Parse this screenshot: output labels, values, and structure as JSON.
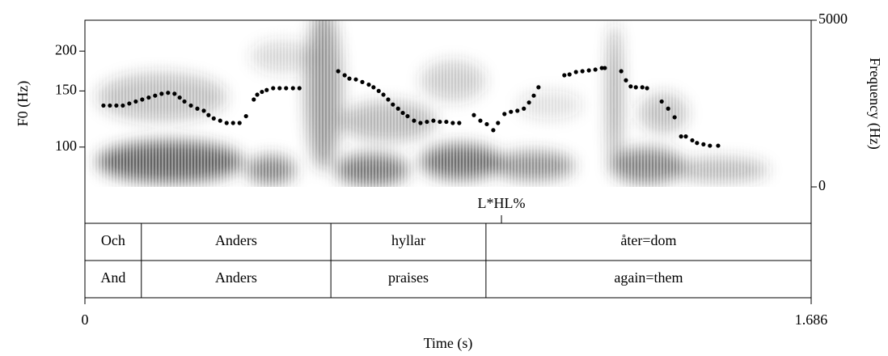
{
  "chart_data": {
    "type": "scatter",
    "ylabel": "F0 (Hz)",
    "y2label": "Frequency (Hz)",
    "xlabel": "Time (s)",
    "xlim": [
      0,
      1.686
    ],
    "xticks": [
      0,
      1.686
    ],
    "ylim": [
      75,
      250
    ],
    "yticks": [
      100,
      150,
      200
    ],
    "log_y": true,
    "y2lim": [
      0,
      5000
    ],
    "y2ticks": [
      0,
      5000
    ],
    "color": "#000000",
    "x": [
      0.043,
      0.058,
      0.073,
      0.088,
      0.103,
      0.118,
      0.133,
      0.148,
      0.163,
      0.178,
      0.193,
      0.208,
      0.22,
      0.231,
      0.246,
      0.261,
      0.276,
      0.287,
      0.299,
      0.314,
      0.329,
      0.344,
      0.359,
      0.374,
      0.392,
      0.4,
      0.411,
      0.422,
      0.437,
      0.452,
      0.467,
      0.483,
      0.498,
      0.588,
      0.603,
      0.614,
      0.629,
      0.644,
      0.659,
      0.67,
      0.682,
      0.693,
      0.704,
      0.715,
      0.727,
      0.738,
      0.749,
      0.764,
      0.779,
      0.794,
      0.809,
      0.824,
      0.839,
      0.854,
      0.869,
      0.903,
      0.918,
      0.933,
      0.948,
      0.959,
      0.974,
      0.989,
      1.004,
      1.019,
      1.031,
      1.042,
      1.053,
      1.113,
      1.125,
      1.14,
      1.155,
      1.17,
      1.185,
      1.2,
      1.207,
      1.245,
      1.256,
      1.267,
      1.279,
      1.294,
      1.305,
      1.339,
      1.354,
      1.369,
      1.384,
      1.395,
      1.41,
      1.421,
      1.436,
      1.451,
      1.47
    ],
    "y": [
      135,
      135,
      135,
      135,
      137,
      139,
      141,
      143,
      145,
      147,
      148,
      147,
      143,
      139,
      135,
      132,
      130,
      126,
      123,
      121,
      119,
      119,
      119,
      125,
      141,
      146,
      149,
      151,
      153,
      153,
      153,
      153,
      153,
      173,
      168,
      164,
      163,
      160,
      157,
      154,
      150,
      146,
      141,
      136,
      132,
      128,
      125,
      121,
      119,
      120,
      121,
      120,
      120,
      119,
      119,
      126,
      121,
      118,
      113,
      119,
      127,
      129,
      130,
      132,
      138,
      145,
      154,
      168,
      169,
      172,
      173,
      174,
      175,
      177,
      177,
      173,
      162,
      155,
      154,
      154,
      153,
      139,
      132,
      124,
      108,
      108,
      105,
      103,
      102,
      101,
      101
    ],
    "tiers": [
      {
        "kind": "point",
        "times": [
          0.967
        ],
        "labels": [
          "L*HL%"
        ]
      },
      {
        "kind": "interval",
        "boundaries": [
          0.131,
          0.571,
          0.931
        ],
        "labels": [
          "Och",
          "Anders",
          "hyllar",
          "åter=dom"
        ]
      },
      {
        "kind": "interval",
        "boundaries": [
          0.131,
          0.571,
          0.931
        ],
        "labels": [
          "And",
          "Anders",
          "praises",
          "again=them"
        ]
      }
    ]
  }
}
